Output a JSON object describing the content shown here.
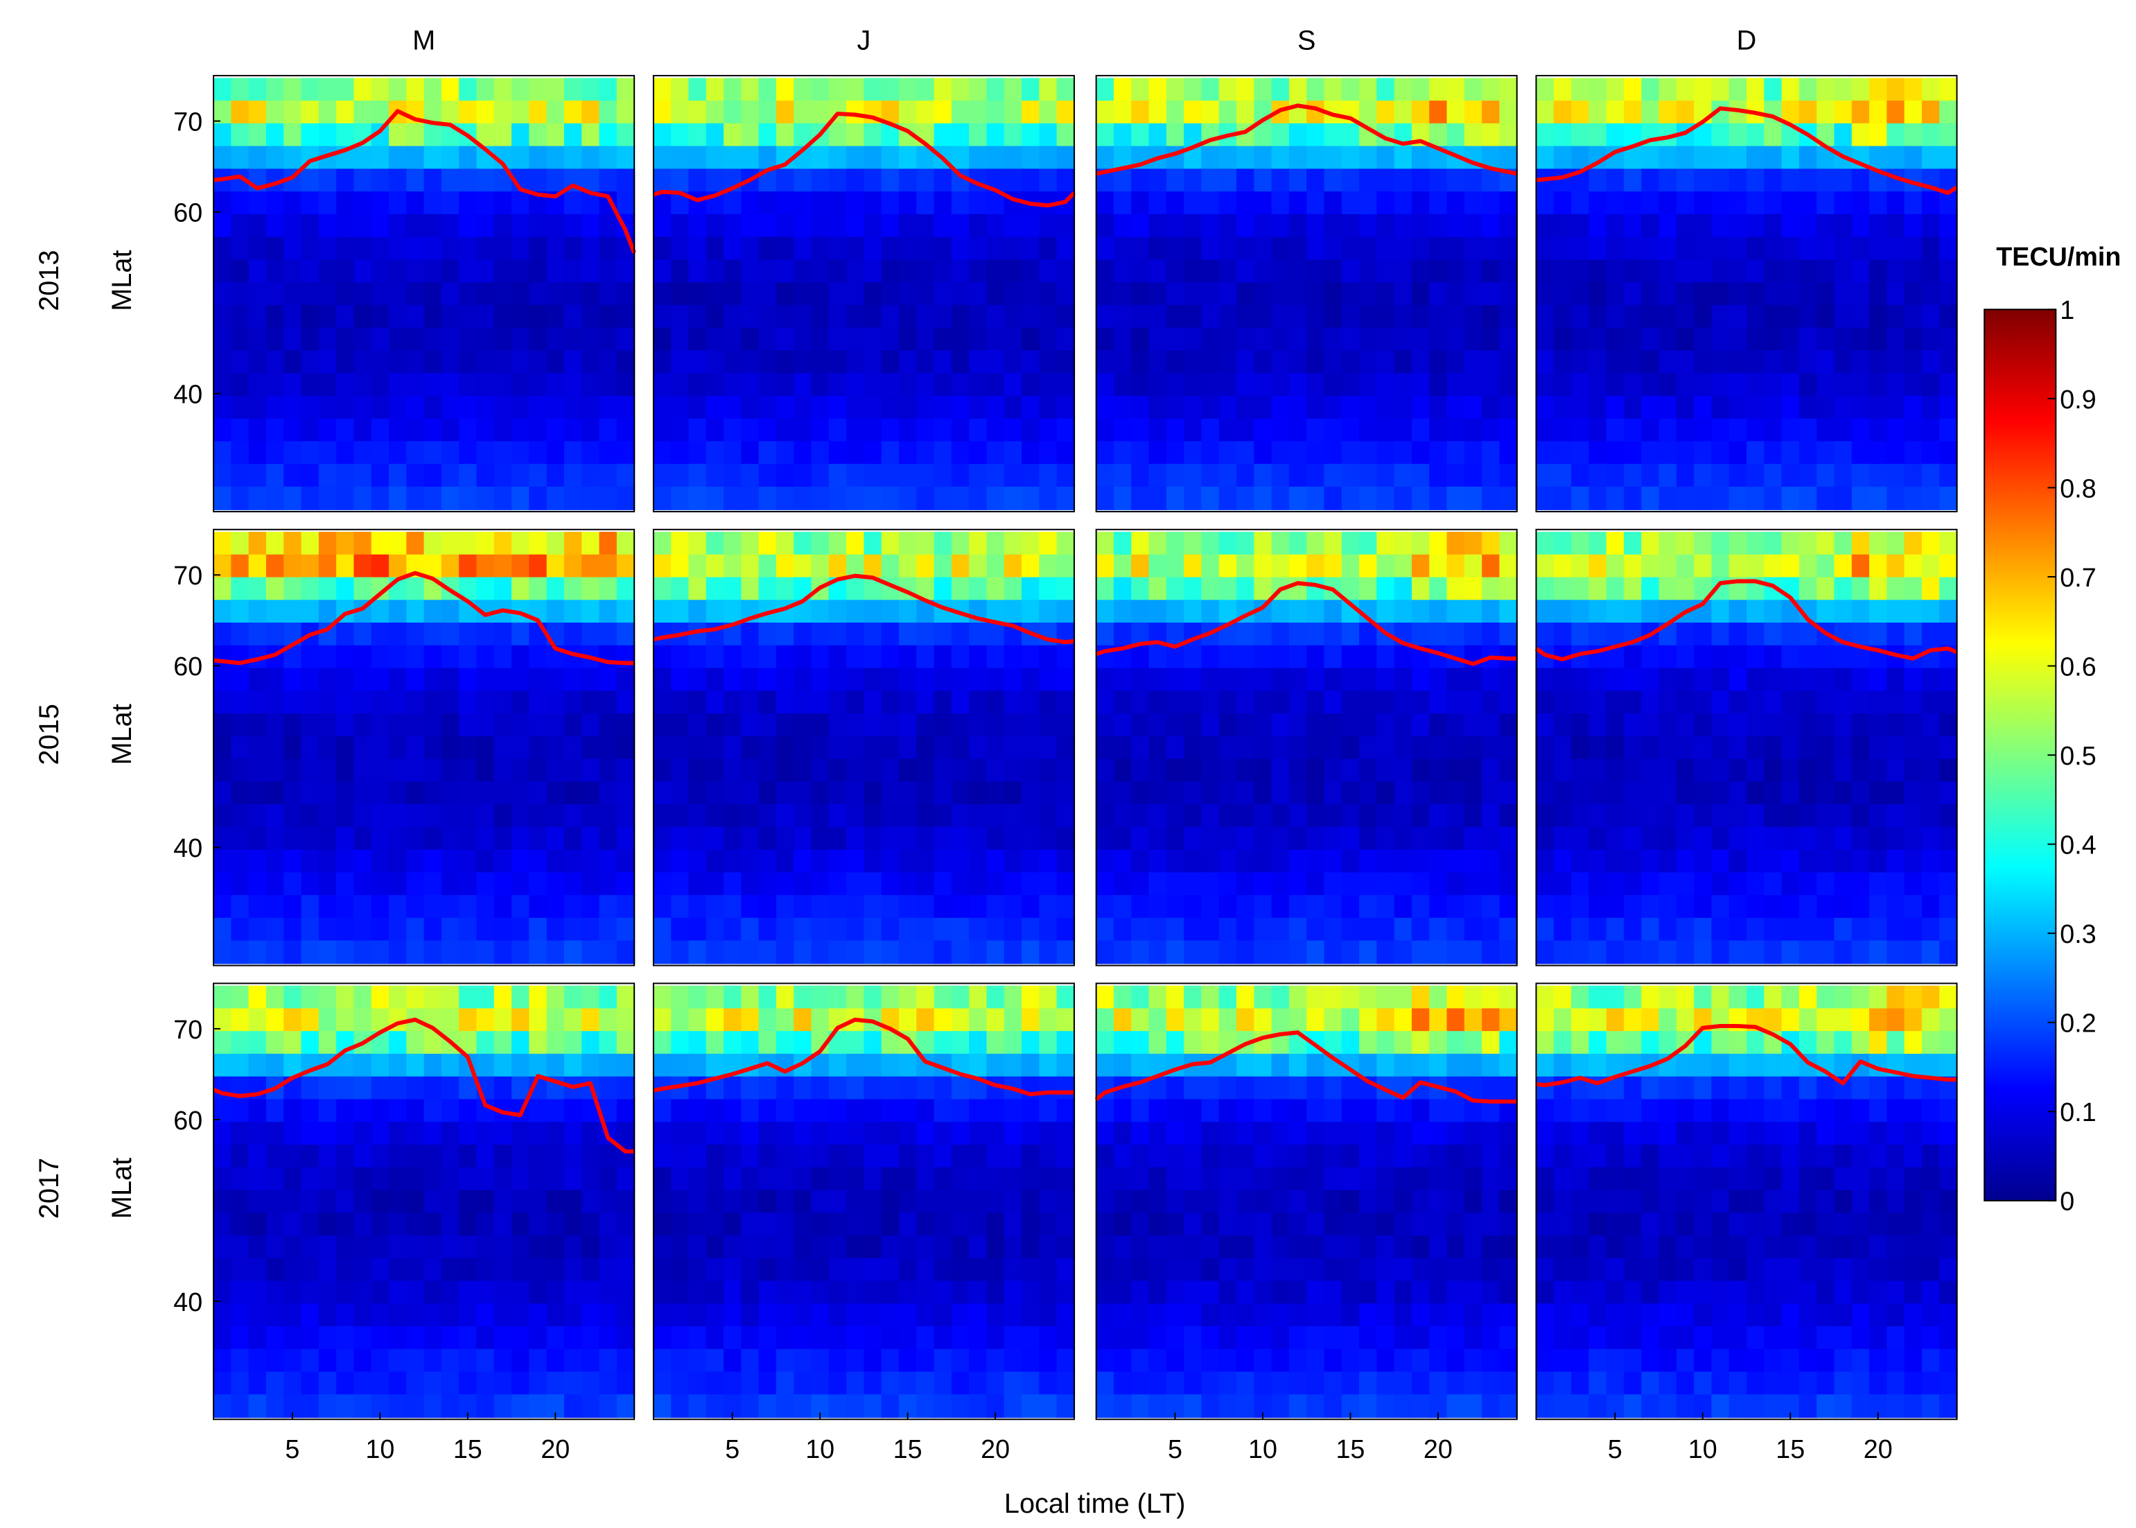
{
  "figure": {
    "xlabel": "Local time (LT)",
    "ylabel": "MLat",
    "colorbar": {
      "label": "TECU/min",
      "range": [
        0,
        1
      ],
      "ticks": [
        "0",
        "0.1",
        "0.2",
        "0.3",
        "0.4",
        "0.5",
        "0.6",
        "0.7",
        "0.8",
        "0.9",
        "1"
      ],
      "colormap": "jet"
    }
  },
  "chart_data": {
    "type": "heatmap",
    "columns": [
      "M",
      "J",
      "S",
      "D"
    ],
    "rows": [
      "2013",
      "2015",
      "2017"
    ],
    "xlim": [
      0.5,
      24.5
    ],
    "ylim": [
      27,
      75
    ],
    "xticks": [
      5,
      10,
      15,
      20
    ],
    "yticks": [
      40,
      60,
      70
    ],
    "cells": {
      "lat_bins": [
        73.5,
        71,
        68.5,
        66,
        63.5,
        61,
        58.5,
        56,
        53.5,
        51,
        48.5,
        46,
        43.5,
        41,
        38.5,
        36,
        33.5,
        31,
        28.5
      ],
      "hour_bins": [
        1,
        2,
        3,
        4,
        5,
        6,
        7,
        8,
        9,
        10,
        11,
        12,
        13,
        14,
        15,
        16,
        17,
        18,
        19,
        20,
        21,
        22,
        23,
        24
      ],
      "band_base_tecu_per_min": [
        0.52,
        0.58,
        0.45,
        0.3,
        0.17,
        0.13,
        0.1,
        0.08,
        0.07,
        0.06,
        0.06,
        0.06,
        0.07,
        0.08,
        0.1,
        0.12,
        0.14,
        0.16,
        0.18
      ]
    },
    "boundary_series": [
      {
        "row": "2013",
        "col": "M",
        "x": [
          0.5,
          1,
          2,
          3,
          4,
          5,
          6,
          7,
          8,
          9,
          10,
          11,
          12,
          13,
          14,
          15,
          16,
          17,
          18,
          19,
          20,
          21,
          22,
          23,
          24,
          24.5
        ],
        "y": [
          63.5,
          63.6,
          63.9,
          62.6,
          63.1,
          63.8,
          65.6,
          66.2,
          66.8,
          67.6,
          68.9,
          71.1,
          70.2,
          69.8,
          69.6,
          68.4,
          66.9,
          65.3,
          62.5,
          61.9,
          61.7,
          62.9,
          62.1,
          61.7,
          58.0,
          55.5
        ]
      },
      {
        "row": "2013",
        "col": "J",
        "x": [
          0.5,
          1,
          2,
          3,
          4,
          5,
          6,
          7,
          8,
          9,
          10,
          11,
          12,
          13,
          14,
          15,
          16,
          17,
          18,
          19,
          20,
          21,
          22,
          23,
          24,
          24.5
        ],
        "y": [
          61.9,
          62.2,
          62.1,
          61.3,
          61.8,
          62.6,
          63.5,
          64.6,
          65.2,
          66.8,
          68.5,
          70.8,
          70.7,
          70.4,
          69.7,
          68.9,
          67.5,
          65.9,
          64.0,
          63.1,
          62.4,
          61.4,
          60.9,
          60.7,
          61.1,
          62.1
        ]
      },
      {
        "row": "2013",
        "col": "S",
        "x": [
          0.5,
          1,
          2,
          3,
          4,
          5,
          6,
          7,
          8,
          9,
          10,
          11,
          12,
          13,
          14,
          15,
          16,
          17,
          18,
          19,
          20,
          21,
          22,
          23,
          24,
          24.5
        ],
        "y": [
          64.2,
          64.4,
          64.8,
          65.2,
          65.9,
          66.4,
          67.1,
          67.9,
          68.4,
          68.8,
          70.1,
          71.2,
          71.7,
          71.4,
          70.7,
          70.3,
          69.2,
          68.1,
          67.5,
          67.8,
          67.0,
          66.2,
          65.4,
          64.8,
          64.4,
          64.2
        ]
      },
      {
        "row": "2013",
        "col": "D",
        "x": [
          0.5,
          1,
          2,
          3,
          4,
          5,
          6,
          7,
          8,
          9,
          10,
          11,
          12,
          13,
          14,
          15,
          16,
          17,
          18,
          19,
          20,
          21,
          22,
          23,
          24,
          24.5
        ],
        "y": [
          63.5,
          63.6,
          63.8,
          64.4,
          65.4,
          66.6,
          67.2,
          67.9,
          68.2,
          68.7,
          69.9,
          71.4,
          71.2,
          70.9,
          70.5,
          69.6,
          68.5,
          67.2,
          66.1,
          65.3,
          64.5,
          63.8,
          63.2,
          62.7,
          62.1,
          62.7
        ]
      },
      {
        "row": "2015",
        "col": "M",
        "x": [
          0.5,
          1,
          2,
          3,
          4,
          5,
          6,
          7,
          8,
          9,
          10,
          11,
          12,
          13,
          14,
          15,
          16,
          17,
          18,
          19,
          20,
          21,
          22,
          23,
          24,
          24.5
        ],
        "y": [
          60.6,
          60.5,
          60.3,
          60.7,
          61.2,
          62.3,
          63.4,
          64.0,
          65.7,
          66.3,
          67.9,
          69.5,
          70.2,
          69.6,
          68.3,
          67.1,
          65.6,
          66.1,
          65.8,
          65.0,
          61.9,
          61.3,
          60.9,
          60.4,
          60.3,
          60.3
        ]
      },
      {
        "row": "2015",
        "col": "J",
        "x": [
          0.5,
          1,
          2,
          3,
          4,
          5,
          6,
          7,
          8,
          9,
          10,
          11,
          12,
          13,
          14,
          15,
          16,
          17,
          18,
          19,
          20,
          21,
          22,
          23,
          24,
          24.5
        ],
        "y": [
          62.9,
          63.1,
          63.4,
          63.8,
          64.0,
          64.5,
          65.2,
          65.8,
          66.3,
          67.1,
          68.6,
          69.5,
          69.9,
          69.7,
          68.9,
          68.1,
          67.2,
          66.4,
          65.8,
          65.2,
          64.8,
          64.4,
          63.6,
          62.9,
          62.6,
          62.7
        ]
      },
      {
        "row": "2015",
        "col": "S",
        "x": [
          0.5,
          1,
          2,
          3,
          4,
          5,
          6,
          7,
          8,
          9,
          10,
          11,
          12,
          13,
          14,
          15,
          16,
          17,
          18,
          19,
          20,
          21,
          22,
          23,
          24,
          24.5
        ],
        "y": [
          61.3,
          61.6,
          61.9,
          62.4,
          62.6,
          62.1,
          62.9,
          63.6,
          64.5,
          65.5,
          66.4,
          68.4,
          69.1,
          68.9,
          68.4,
          66.8,
          65.2,
          63.6,
          62.5,
          61.9,
          61.4,
          60.8,
          60.2,
          60.9,
          60.8,
          60.8
        ]
      },
      {
        "row": "2015",
        "col": "D",
        "x": [
          0.5,
          1,
          2,
          3,
          4,
          5,
          6,
          7,
          8,
          9,
          10,
          11,
          12,
          13,
          14,
          15,
          16,
          17,
          18,
          19,
          20,
          21,
          22,
          23,
          24,
          24.5
        ],
        "y": [
          61.9,
          61.2,
          60.7,
          61.3,
          61.6,
          62.1,
          62.6,
          63.4,
          64.6,
          65.9,
          66.8,
          69.1,
          69.3,
          69.3,
          68.8,
          67.5,
          65.1,
          63.6,
          62.6,
          62.1,
          61.7,
          61.2,
          60.8,
          61.7,
          61.9,
          61.5
        ]
      },
      {
        "row": "2017",
        "col": "M",
        "x": [
          0.5,
          1,
          2,
          3,
          4,
          5,
          6,
          7,
          8,
          9,
          10,
          11,
          12,
          13,
          14,
          15,
          16,
          17,
          18,
          19,
          20,
          21,
          22,
          23,
          24,
          24.5
        ],
        "y": [
          63.3,
          62.9,
          62.6,
          62.8,
          63.4,
          64.6,
          65.4,
          66.1,
          67.6,
          68.4,
          69.6,
          70.6,
          71.0,
          70.1,
          68.6,
          66.9,
          61.6,
          60.8,
          60.5,
          64.8,
          64.2,
          63.6,
          64.0,
          58.0,
          56.5,
          56.5
        ]
      },
      {
        "row": "2017",
        "col": "J",
        "x": [
          0.5,
          1,
          2,
          3,
          4,
          5,
          6,
          7,
          8,
          9,
          10,
          11,
          12,
          13,
          14,
          15,
          16,
          17,
          18,
          19,
          20,
          21,
          22,
          23,
          24,
          24.5
        ],
        "y": [
          63.2,
          63.4,
          63.7,
          64.0,
          64.5,
          65.0,
          65.6,
          66.2,
          65.3,
          66.2,
          67.5,
          70.1,
          71.0,
          70.8,
          70.0,
          68.9,
          66.4,
          65.7,
          65.0,
          64.5,
          63.8,
          63.4,
          62.8,
          63.0,
          63.0,
          63.0
        ]
      },
      {
        "row": "2017",
        "col": "S",
        "x": [
          0.5,
          1,
          2,
          3,
          4,
          5,
          6,
          7,
          8,
          9,
          10,
          11,
          12,
          13,
          14,
          15,
          16,
          17,
          18,
          19,
          20,
          21,
          22,
          23,
          24,
          24.5
        ],
        "y": [
          62.2,
          63.0,
          63.6,
          64.1,
          64.8,
          65.5,
          66.1,
          66.3,
          67.3,
          68.3,
          69.0,
          69.4,
          69.6,
          68.2,
          66.8,
          65.5,
          64.2,
          63.3,
          62.4,
          64.1,
          63.6,
          63.1,
          62.1,
          62.0,
          62.0,
          62.0
        ]
      },
      {
        "row": "2017",
        "col": "D",
        "x": [
          0.5,
          1,
          2,
          3,
          4,
          5,
          6,
          7,
          8,
          9,
          10,
          11,
          12,
          13,
          14,
          15,
          16,
          17,
          18,
          19,
          20,
          21,
          22,
          23,
          24,
          24.5
        ],
        "y": [
          63.9,
          63.8,
          64.1,
          64.6,
          64.0,
          64.7,
          65.3,
          65.9,
          66.7,
          68.1,
          70.1,
          70.3,
          70.3,
          70.2,
          69.4,
          68.3,
          66.3,
          65.3,
          64.0,
          66.4,
          65.6,
          65.2,
          64.8,
          64.6,
          64.4,
          64.4
        ]
      }
    ]
  }
}
